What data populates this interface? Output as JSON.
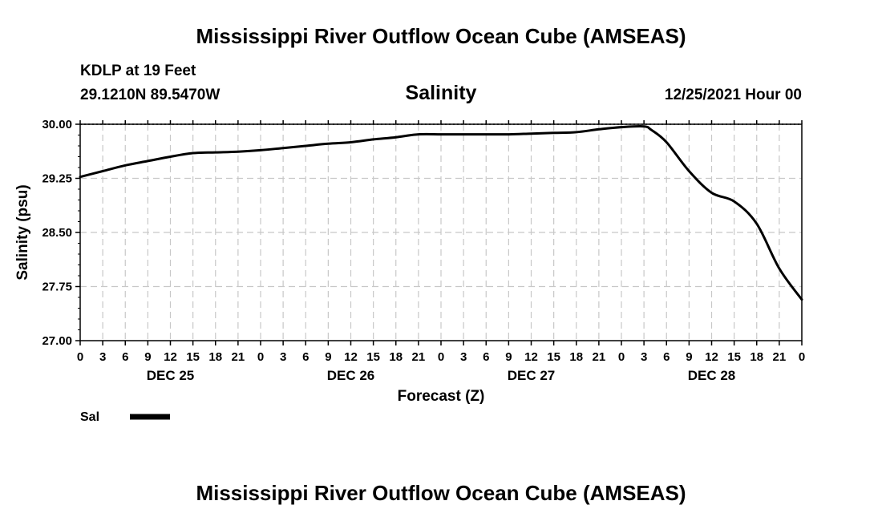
{
  "page": {
    "title": "Mississippi River Outflow Ocean Cube (AMSEAS)",
    "footer_title": "Mississippi River Outflow Ocean Cube (AMSEAS)",
    "station_line": "KDLP at 19 Feet",
    "coords_line": "29.1210N  89.5470W",
    "datetime": "12/25/2021 Hour 00"
  },
  "chart_data": {
    "type": "line",
    "title": "Salinity",
    "xlabel": "Forecast (Z)",
    "ylabel": "Salinity (psu)",
    "ylim": [
      27.0,
      30.0
    ],
    "xlim": [
      0,
      96
    ],
    "y_ticks": [
      "30.00",
      "29.25",
      "28.50",
      "27.75",
      "27.00"
    ],
    "y_tick_values": [
      30.0,
      29.25,
      28.5,
      27.75,
      27.0
    ],
    "x_tick_hours": [
      0,
      3,
      6,
      9,
      12,
      15,
      18,
      21,
      24,
      27,
      30,
      33,
      36,
      39,
      42,
      45,
      48,
      51,
      54,
      57,
      60,
      63,
      66,
      69,
      72,
      75,
      78,
      81,
      84,
      87,
      90,
      93,
      96
    ],
    "x_tick_labels": [
      "0",
      "3",
      "6",
      "9",
      "12",
      "15",
      "18",
      "21",
      "0",
      "3",
      "6",
      "9",
      "12",
      "15",
      "18",
      "21",
      "0",
      "3",
      "6",
      "9",
      "12",
      "15",
      "18",
      "21",
      "0",
      "3",
      "6",
      "9",
      "12",
      "15",
      "18",
      "21",
      "0"
    ],
    "day_labels": [
      {
        "text": "DEC 25",
        "hour": 12
      },
      {
        "text": "DEC 26",
        "hour": 36
      },
      {
        "text": "DEC 27",
        "hour": 60
      },
      {
        "text": "DEC 28",
        "hour": 84
      }
    ],
    "grid": true,
    "series": [
      {
        "name": "Sal",
        "x": [
          0,
          3,
          6,
          9,
          12,
          15,
          18,
          21,
          24,
          27,
          30,
          33,
          36,
          39,
          42,
          45,
          48,
          51,
          54,
          57,
          60,
          63,
          66,
          69,
          72,
          75,
          76,
          78,
          81,
          84,
          87,
          90,
          93,
          96
        ],
        "values": [
          29.27,
          29.35,
          29.43,
          29.49,
          29.55,
          29.6,
          29.61,
          29.62,
          29.64,
          29.67,
          29.7,
          29.73,
          29.75,
          29.79,
          29.82,
          29.86,
          29.86,
          29.86,
          29.86,
          29.86,
          29.87,
          29.88,
          29.89,
          29.93,
          29.96,
          29.97,
          29.92,
          29.75,
          29.35,
          29.05,
          28.93,
          28.62,
          28.0,
          27.57
        ]
      }
    ],
    "legend": {
      "label": "Sal",
      "placement": "bottom-left"
    }
  }
}
